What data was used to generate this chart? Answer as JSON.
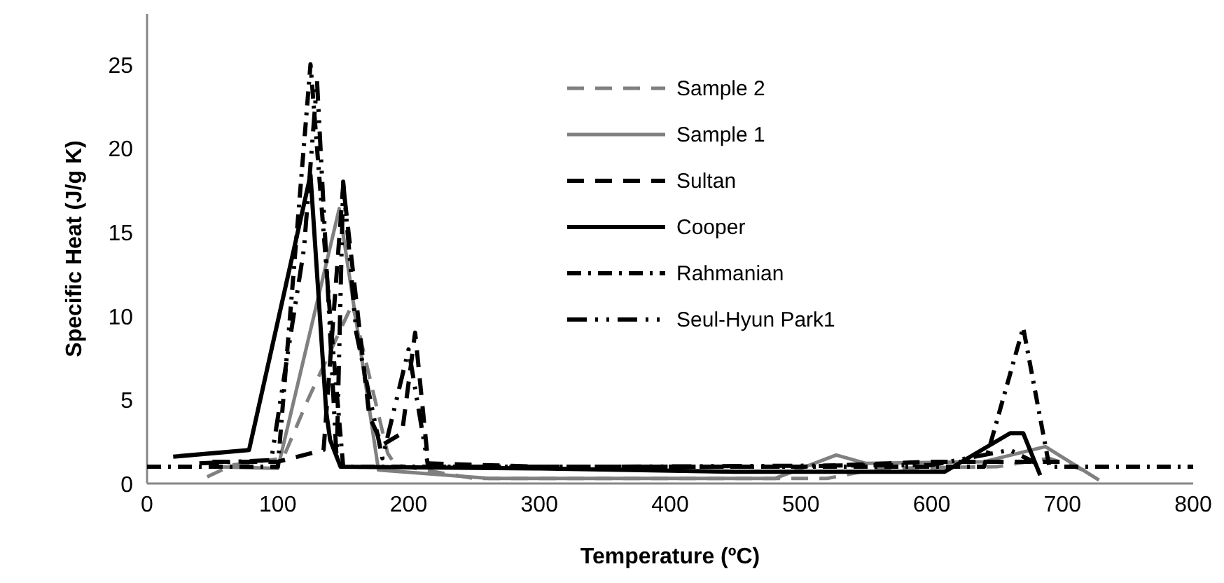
{
  "chart_data": {
    "type": "line",
    "xlabel": "Temperature (ºC)",
    "ylabel": "Specific Heat (J/g K)",
    "xlim": [
      0,
      800
    ],
    "xticks": [
      0,
      100,
      200,
      300,
      400,
      500,
      600,
      700,
      800
    ],
    "ylim": [
      0,
      28
    ],
    "yticks": [
      0,
      5,
      10,
      15,
      20,
      25
    ],
    "grid": false,
    "legend": "top",
    "series": [
      {
        "name": "Sample 2",
        "color": "#808080",
        "line_style": "dashed",
        "x": [
          46,
          65,
          104,
          123,
          157,
          184,
          190,
          250,
          400,
          520,
          560,
          650,
          690,
          720
        ],
        "values": [
          0.4,
          1.1,
          1.5,
          5,
          10.7,
          1.8,
          1.1,
          0.3,
          0.3,
          0.3,
          0.9,
          1,
          1.5,
          0.7
        ]
      },
      {
        "name": "Sample 1",
        "color": "#808080",
        "line_style": "solid",
        "x": [
          50,
          100,
          147,
          177,
          262,
          480,
          527,
          550,
          640,
          687,
          728
        ],
        "values": [
          1,
          0.9,
          16.4,
          0.8,
          0.3,
          0.3,
          1.7,
          1.2,
          1.3,
          2.2,
          0.2
        ]
      },
      {
        "name": "Sultan",
        "color": "#000000",
        "line_style": "dashed",
        "x": [
          50,
          100,
          135,
          150,
          170,
          180,
          195,
          205,
          215,
          300,
          500,
          600,
          700
        ],
        "values": [
          1.3,
          1.3,
          2,
          17.8,
          4,
          2.3,
          3,
          9,
          1.2,
          1,
          1,
          1.3,
          1.3
        ]
      },
      {
        "name": "Cooper",
        "color": "#000000",
        "line_style": "solid",
        "x": [
          20,
          78,
          125,
          137,
          140,
          148,
          300,
          450,
          610,
          660,
          670,
          683
        ],
        "values": [
          1.6,
          2,
          18.4,
          4.3,
          2.6,
          1,
          0.9,
          0.7,
          0.7,
          3,
          3,
          0.5
        ]
      },
      {
        "name": "Rahmanian",
        "color": "#000000",
        "line_style": "dashdot",
        "x": [
          0,
          50,
          100,
          125,
          140,
          150,
          200,
          400,
          640,
          670,
          690,
          800
        ],
        "values": [
          1,
          1,
          1,
          25,
          10,
          1,
          1,
          1,
          1,
          9.3,
          1,
          1
        ]
      },
      {
        "name": "Seul-Hyun Park1",
        "color": "#000000",
        "line_style": "dashdotdot",
        "x": [
          40,
          95,
          120,
          130,
          145,
          150,
          160,
          180,
          200,
          215,
          350,
          600,
          660,
          680
        ],
        "values": [
          1.2,
          1.4,
          14,
          24,
          1.4,
          18,
          9,
          1.5,
          8,
          1,
          1,
          1.1,
          2,
          1.2
        ]
      }
    ]
  }
}
